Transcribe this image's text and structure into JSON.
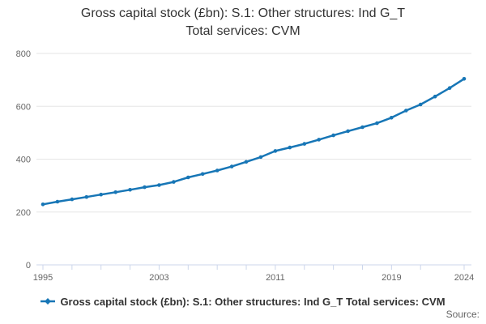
{
  "title": {
    "line1": "Gross capital stock (£bn): S.1: Other structures: Ind G_T",
    "line2": "Total services: CVM"
  },
  "legend": {
    "label": "Gross capital stock (£bn): S.1: Other structures: Ind G_T Total services: CVM"
  },
  "source_label": "Source:",
  "colors": {
    "series": "#1776b6",
    "grid": "#e6e6e6",
    "axis": "#ccd6eb",
    "axis_text": "#666666",
    "title_text": "#333333"
  },
  "chart_data": {
    "type": "line",
    "title": "Gross capital stock (£bn): S.1: Other structures: Ind G_T Total services: CVM",
    "xlabel": "",
    "ylabel": "",
    "ylim": [
      0,
      800
    ],
    "yticks": [
      0,
      200,
      400,
      600,
      800
    ],
    "xtick_marks": [
      1995,
      1997,
      1999,
      2001,
      2003,
      2005,
      2007,
      2009,
      2011,
      2013,
      2015,
      2017,
      2019,
      2021,
      2024
    ],
    "xtick_labels": [
      1995,
      2003,
      2011,
      2019,
      2024
    ],
    "grid": "horizontal",
    "legend_position": "bottom",
    "x": [
      1995,
      1996,
      1997,
      1998,
      1999,
      2000,
      2001,
      2002,
      2003,
      2004,
      2005,
      2006,
      2007,
      2008,
      2009,
      2010,
      2011,
      2012,
      2013,
      2014,
      2015,
      2016,
      2017,
      2018,
      2019,
      2020,
      2021,
      2022,
      2023,
      2024
    ],
    "series": [
      {
        "name": "Gross capital stock (£bn): S.1: Other structures: Ind G_T Total services: CVM",
        "values": [
          229,
          239,
          248,
          257,
          266,
          275,
          284,
          294,
          302,
          314,
          331,
          344,
          357,
          372,
          390,
          408,
          431,
          444,
          458,
          474,
          490,
          506,
          521,
          536,
          557,
          584,
          607,
          637,
          669,
          704
        ]
      }
    ]
  }
}
